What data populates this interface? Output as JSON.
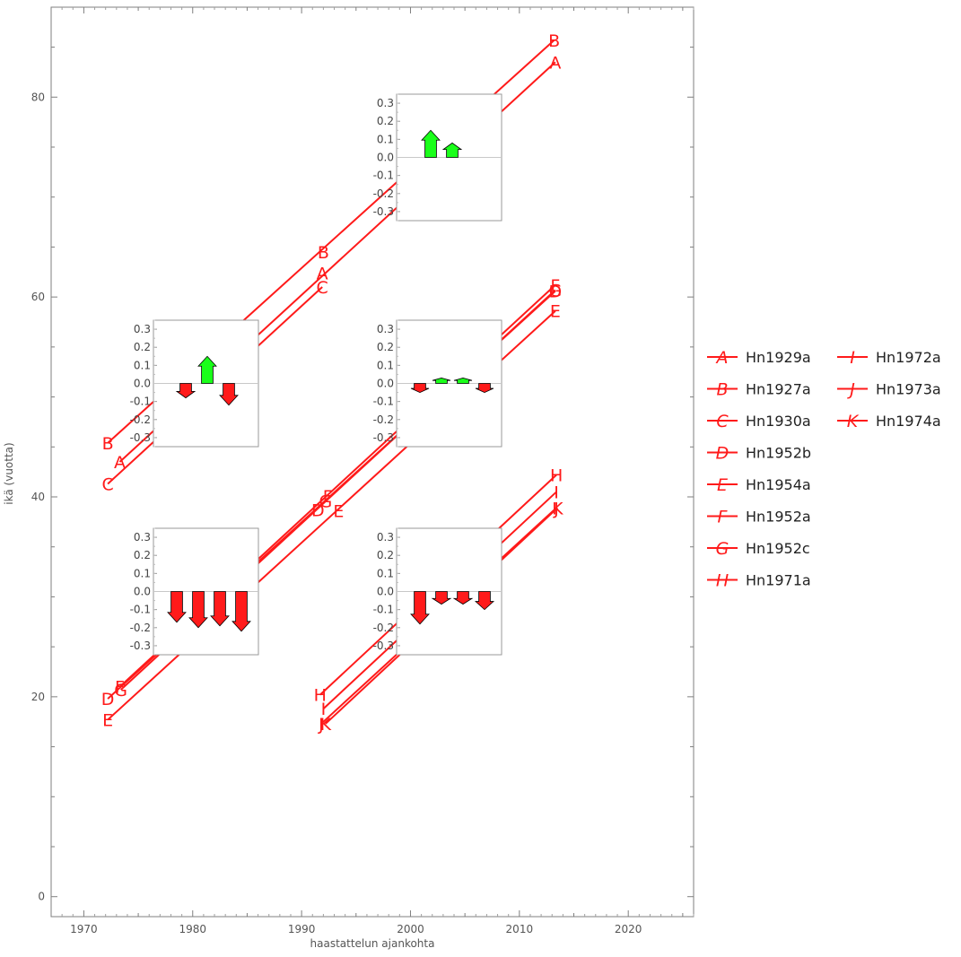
{
  "chart_data": {
    "type": "line",
    "xlabel": "haastattelun ajankohta",
    "ylabel": "ikä (vuotta)",
    "xlim": [
      1967,
      2026
    ],
    "ylim": [
      -2,
      89
    ],
    "x_ticks": [
      1970,
      1980,
      1990,
      2000,
      2010,
      2020
    ],
    "y_ticks": [
      0,
      20,
      40,
      60,
      80
    ],
    "series_color": "#ff1a1a",
    "series": [
      {
        "name": "Hn1929a",
        "marker": "A",
        "start": [
          1973.3,
          43.5
        ],
        "end": [
          2013.3,
          83.5
        ],
        "labels": [
          [
            1973.3,
            43.5
          ],
          [
            1991.9,
            62.4
          ],
          [
            2013.3,
            83.5
          ]
        ]
      },
      {
        "name": "Hn1927a",
        "marker": "B",
        "start": [
          1972.2,
          45.4
        ],
        "end": [
          2013.2,
          85.7
        ],
        "labels": [
          [
            1972.2,
            45.4
          ],
          [
            1992.0,
            64.5
          ],
          [
            2013.2,
            85.7
          ]
        ]
      },
      {
        "name": "Hn1930a",
        "marker": "C",
        "start": [
          1972.2,
          41.3
        ],
        "end": [
          1991.9,
          61.0
        ],
        "labels": [
          [
            1972.2,
            41.3
          ],
          [
            1991.9,
            61.0
          ]
        ]
      },
      {
        "name": "Hn1952b",
        "marker": "D",
        "start": [
          1972.2,
          19.8
        ],
        "end": [
          2013.3,
          60.6
        ],
        "labels": [
          [
            1972.2,
            19.8
          ],
          [
            1991.5,
            38.7
          ],
          [
            2013.3,
            60.6
          ]
        ]
      },
      {
        "name": "Hn1954a",
        "marker": "E",
        "start": [
          1972.2,
          17.7
        ],
        "end": [
          2013.3,
          58.6
        ],
        "labels": [
          [
            1972.2,
            17.7
          ],
          [
            1993.4,
            38.6
          ],
          [
            2013.3,
            58.6
          ]
        ]
      },
      {
        "name": "Hn1952a",
        "marker": "F",
        "start": [
          1973.3,
          21.0
        ],
        "end": [
          2013.3,
          61.2
        ],
        "labels": [
          [
            1973.3,
            21.0
          ],
          [
            1992.4,
            40.1
          ],
          [
            2013.3,
            61.2
          ]
        ]
      },
      {
        "name": "Hn1952c",
        "marker": "G",
        "start": [
          1973.4,
          20.7
        ],
        "end": [
          2013.3,
          60.7
        ],
        "labels": [
          [
            1973.4,
            20.7
          ],
          [
            1992.2,
            39.6
          ],
          [
            2013.3,
            60.7
          ]
        ]
      },
      {
        "name": "Hn1971a",
        "marker": "H",
        "start": [
          1991.7,
          20.2
        ],
        "end": [
          2013.4,
          42.2
        ],
        "labels": [
          [
            1991.7,
            20.2
          ],
          [
            2013.4,
            42.2
          ]
        ]
      },
      {
        "name": "Hn1972a",
        "marker": "I",
        "start": [
          1992.0,
          18.8
        ],
        "end": [
          2013.4,
          40.5
        ],
        "labels": [
          [
            1992.0,
            18.8
          ],
          [
            2013.4,
            40.5
          ]
        ]
      },
      {
        "name": "Hn1973a",
        "marker": "J",
        "start": [
          1991.8,
          17.3
        ],
        "end": [
          2013.4,
          38.9
        ],
        "labels": [
          [
            1991.8,
            17.3
          ],
          [
            2013.4,
            38.9
          ]
        ]
      },
      {
        "name": "Hn1974a",
        "marker": "K",
        "start": [
          1992.2,
          17.3
        ],
        "end": [
          2013.5,
          38.9
        ],
        "labels": [
          [
            1992.2,
            17.3
          ],
          [
            2013.5,
            38.9
          ]
        ]
      }
    ],
    "insets": [
      {
        "id": "inset-2002",
        "ylim": [
          -0.35,
          0.35
        ],
        "ticks": [
          "0.3",
          "0.2",
          "0.1",
          "0.0",
          "-0.1",
          "-0.2",
          "-0.3"
        ],
        "values": [
          0.15,
          0.08
        ]
      },
      {
        "id": "inset-1982",
        "ylim": [
          -0.35,
          0.35
        ],
        "ticks": [
          "0.3",
          "0.2",
          "0.1",
          "0.0",
          "-0.1",
          "-0.2",
          "-0.3"
        ],
        "values": [
          -0.08,
          0.15,
          -0.12
        ]
      },
      {
        "id": "inset-2003",
        "ylim": [
          -0.35,
          0.35
        ],
        "ticks": [
          "0.3",
          "0.2",
          "0.1",
          "0.0",
          "-0.1",
          "-0.2",
          "-0.3"
        ],
        "values": [
          -0.05,
          0.03,
          0.03,
          -0.05
        ]
      },
      {
        "id": "inset-1982b",
        "ylim": [
          -0.35,
          0.35
        ],
        "ticks": [
          "0.3",
          "0.2",
          "0.1",
          "0.0",
          "-0.1",
          "-0.2",
          "-0.3"
        ],
        "values": [
          -0.17,
          -0.2,
          -0.19,
          -0.22
        ]
      },
      {
        "id": "inset-2004",
        "ylim": [
          -0.35,
          0.35
        ],
        "ticks": [
          "0.3",
          "0.2",
          "0.1",
          "0.0",
          "-0.1",
          "-0.2",
          "-0.3"
        ],
        "values": [
          -0.18,
          -0.07,
          -0.07,
          -0.1
        ]
      }
    ],
    "arrow_colors": {
      "up": "#1aff1a",
      "down": "#ff1a1a"
    },
    "legend": {
      "placement": "right",
      "columns": [
        [
          "Hn1929a",
          "Hn1927a",
          "Hn1930a",
          "Hn1952b",
          "Hn1954a",
          "Hn1952a",
          "Hn1952c",
          "Hn1971a"
        ],
        [
          "Hn1972a",
          "Hn1973a",
          "Hn1974a"
        ]
      ]
    }
  }
}
